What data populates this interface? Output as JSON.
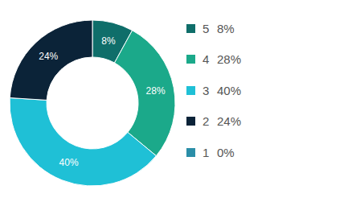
{
  "chart_data": {
    "type": "pie",
    "categories": [
      "5",
      "4",
      "3",
      "2",
      "1"
    ],
    "values": [
      8,
      28,
      40,
      24,
      0
    ],
    "value_labels": [
      "8%",
      "28%",
      "40%",
      "24%",
      "0%"
    ],
    "colors": [
      "#0f6e6a",
      "#1ba98a",
      "#1fc0d6",
      "#0b2338",
      "#2b8ea8"
    ],
    "data_labels": true,
    "legend": "right"
  }
}
